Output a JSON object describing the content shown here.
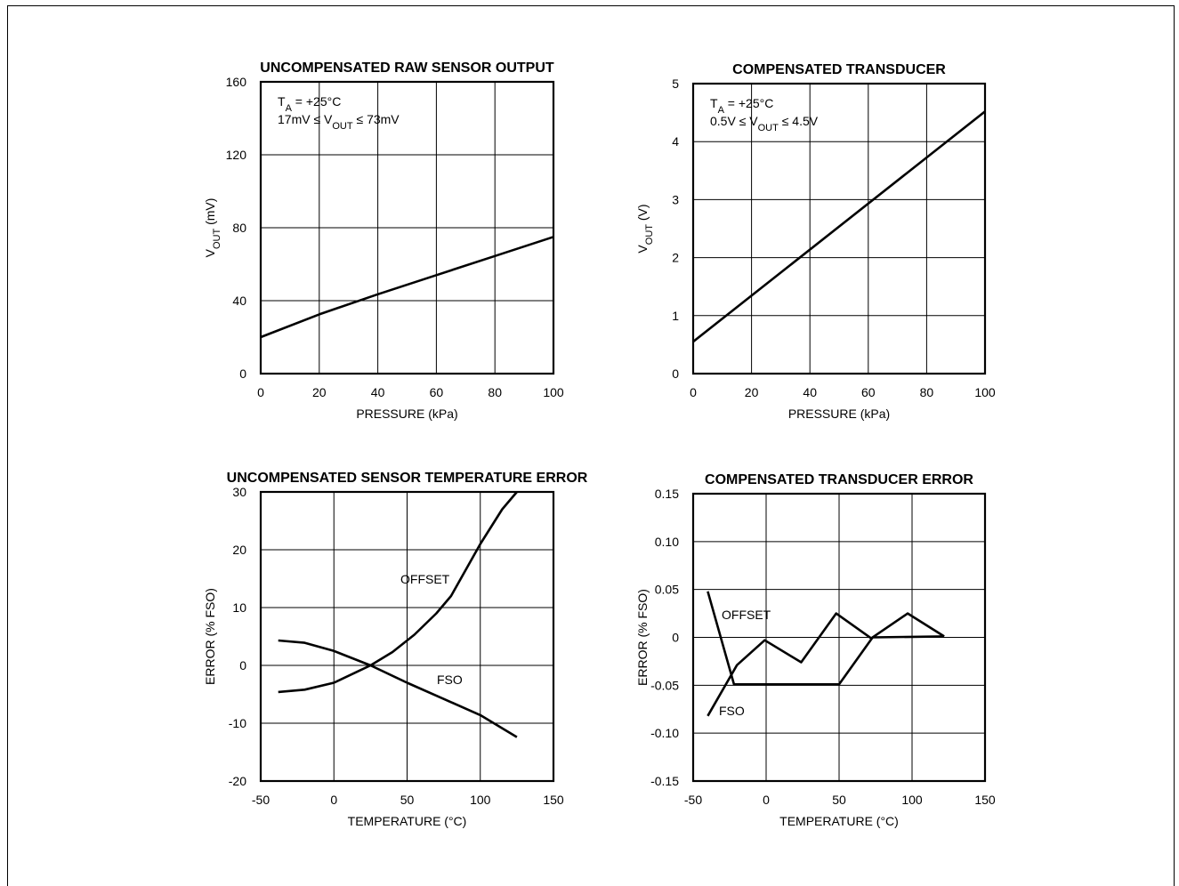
{
  "chart_data": [
    {
      "type": "line",
      "title": "UNCOMPENSATED RAW SENSOR OUTPUT",
      "xlabel": "PRESSURE (kPa)",
      "ylabel": "V_OUT (mV)",
      "xlim": [
        0,
        100
      ],
      "ylim": [
        0,
        160
      ],
      "xticks": [
        "0",
        "20",
        "40",
        "60",
        "80",
        "100"
      ],
      "yticks": [
        "0",
        "40",
        "80",
        "120",
        "160"
      ],
      "grid": true,
      "annotation": [
        "TA = +25°C",
        "17mV ≤ VOUT ≤ 73mV"
      ],
      "series": [
        {
          "x": [
            0,
            20,
            40,
            60,
            80,
            100
          ],
          "y": [
            20,
            32.5,
            43.5,
            54,
            64.5,
            75
          ]
        }
      ]
    },
    {
      "type": "line",
      "title": "COMPENSATED TRANSDUCER",
      "xlabel": "PRESSURE (kPa)",
      "ylabel": "V_OUT (V)",
      "xlim": [
        0,
        100
      ],
      "ylim": [
        0,
        5
      ],
      "xticks": [
        "0",
        "20",
        "40",
        "60",
        "80",
        "100"
      ],
      "yticks": [
        "0",
        "1",
        "2",
        "3",
        "4",
        "5"
      ],
      "grid": true,
      "annotation": [
        "TA = +25°C",
        "0.5V ≤ VOUT ≤ 4.5V"
      ],
      "series": [
        {
          "x": [
            0,
            100
          ],
          "y": [
            0.55,
            4.52
          ]
        }
      ]
    },
    {
      "type": "line",
      "title": "UNCOMPENSATED SENSOR TEMPERATURE ERROR",
      "xlabel": "TEMPERATURE (°C)",
      "ylabel": "ERROR (% FSO)",
      "xlim": [
        -50,
        150
      ],
      "ylim": [
        -20,
        30
      ],
      "xticks": [
        "-50",
        "0",
        "50",
        "100",
        "150"
      ],
      "yticks": [
        "-20",
        "-10",
        "0",
        "10",
        "20",
        "30"
      ],
      "grid": true,
      "series": [
        {
          "name": "OFFSET",
          "x": [
            -38,
            -20,
            0,
            15,
            25,
            40,
            55,
            70,
            80,
            100,
            115,
            125
          ],
          "y": [
            -4.6,
            -4.2,
            -3,
            -1.2,
            0,
            2.3,
            5.3,
            9,
            12,
            21,
            27,
            30
          ]
        },
        {
          "name": "FSO",
          "x": [
            -38,
            -20,
            0,
            25,
            50,
            75,
            100,
            125
          ],
          "y": [
            4.3,
            3.9,
            2.5,
            0,
            -3,
            -5.8,
            -8.6,
            -12.4
          ]
        }
      ]
    },
    {
      "type": "line",
      "title": "COMPENSATED TRANSDUCER ERROR",
      "xlabel": "TEMPERATURE (°C)",
      "ylabel": "ERROR (% FSO)",
      "xlim": [
        -50,
        150
      ],
      "ylim": [
        -0.15,
        0.15
      ],
      "xticks": [
        "-50",
        "0",
        "50",
        "100",
        "150"
      ],
      "yticks": [
        "-0.15",
        "-0.10",
        "-0.05",
        "0",
        "0.05",
        "0.10",
        "0.15"
      ],
      "grid": true,
      "series": [
        {
          "name": "OFFSET",
          "x": [
            -40,
            -22,
            50,
            73,
            122
          ],
          "y": [
            0.048,
            -0.049,
            -0.049,
            0.0,
            0.001
          ]
        },
        {
          "name": "FSO",
          "x": [
            -40,
            -20,
            -1,
            24,
            48,
            72,
            97,
            122
          ],
          "y": [
            -0.082,
            -0.029,
            -0.003,
            -0.026,
            0.025,
            -0.001,
            0.025,
            0.001
          ]
        }
      ]
    }
  ],
  "labels": {
    "offset": "OFFSET",
    "fso": "FSO"
  }
}
